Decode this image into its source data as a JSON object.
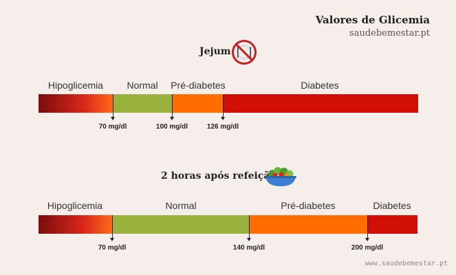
{
  "header": {
    "title": "Valores de Glicemia",
    "subtitle": "saudebemestar.pt"
  },
  "fasting": {
    "title": "Jejum",
    "icon": "no-eating-icon",
    "categories": {
      "hypo": "Hipoglicemia",
      "normal": "Normal",
      "prediabetes": "Pré-diabetes",
      "diabetes": "Diabetes"
    },
    "thresholds": [
      "70 mg/dl",
      "100 mg/dl",
      "126 mg/dl"
    ],
    "colors": {
      "hypo_start": "#7a0d0d",
      "hypo_end": "#ff6a1a",
      "normal": "#99b23e",
      "prediabetes": "#ff6d00",
      "diabetes": "#d10f05"
    }
  },
  "postprandial": {
    "title": "2 horas após refeição",
    "icon": "salad-bowl-icon",
    "categories": {
      "hypo": "Hipoglicemia",
      "normal": "Normal",
      "prediabetes": "Pré-diabetes",
      "diabetes": "Diabetes"
    },
    "thresholds": [
      "70 mg/dl",
      "140 mg/dl",
      "200 mg/dl"
    ],
    "colors": {
      "hypo_start": "#7a0d0d",
      "hypo_end": "#ff6a1a",
      "normal": "#99b23e",
      "prediabetes": "#ff6d00",
      "diabetes": "#d10f05"
    }
  },
  "footer": {
    "url": "www.saudebemestar.pt"
  }
}
